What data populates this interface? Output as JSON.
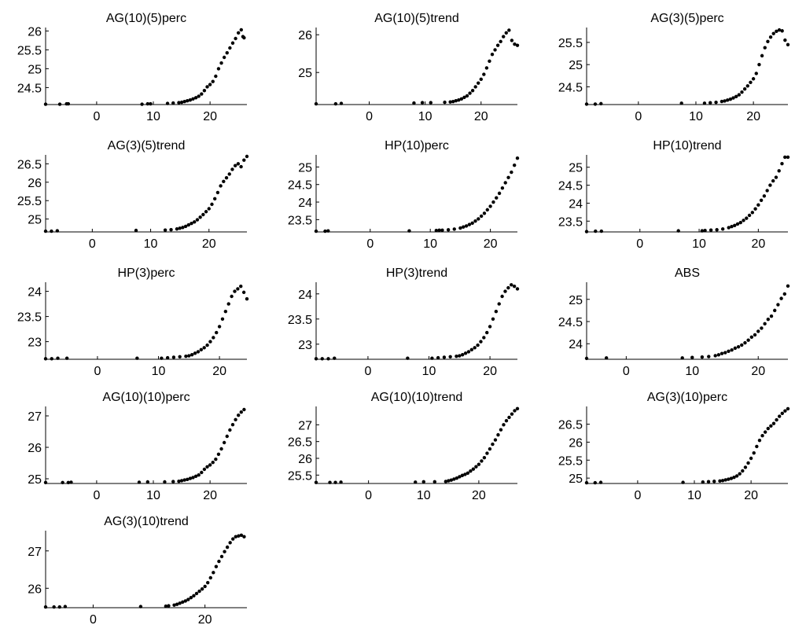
{
  "chart_data": [
    {
      "type": "scatter",
      "title": "AG(10)(5)perc",
      "xlim": [
        -9,
        26.5
      ],
      "ylim": [
        24.05,
        26.05
      ],
      "xticks": [
        0,
        10,
        20
      ],
      "yticks": [
        24.5,
        25,
        25.5,
        26
      ],
      "x": [
        -9,
        -6.5,
        -5.3,
        -5,
        8,
        9,
        9.5,
        12.5,
        13.5,
        14.5,
        15,
        15.5,
        16,
        16.5,
        17,
        17.5,
        18,
        18.5,
        19,
        19.5,
        20,
        20.5,
        21,
        21.5,
        22,
        22.5,
        23,
        23.5,
        24,
        24.5,
        25,
        25.5,
        25.8,
        26
      ],
      "y": [
        24.06,
        24.06,
        24.07,
        24.07,
        24.06,
        24.07,
        24.07,
        24.08,
        24.09,
        24.1,
        24.11,
        24.13,
        24.15,
        24.17,
        24.2,
        24.23,
        24.27,
        24.33,
        24.42,
        24.52,
        24.58,
        24.66,
        24.8,
        25.0,
        25.15,
        25.3,
        25.42,
        25.55,
        25.68,
        25.8,
        25.95,
        26.03,
        25.85,
        25.82
      ]
    },
    {
      "type": "scatter",
      "title": "AG(10)(5)trend",
      "xlim": [
        -9.5,
        26.5
      ],
      "ylim": [
        24.15,
        26.15
      ],
      "xticks": [
        0,
        10,
        20
      ],
      "yticks": [
        25,
        26
      ],
      "x": [
        -9.5,
        -6,
        -5,
        8,
        9.5,
        11,
        13.5,
        14.5,
        15,
        15.5,
        16,
        16.5,
        17,
        17.5,
        18,
        18.5,
        19,
        19.5,
        20,
        20.5,
        21,
        21.5,
        22,
        22.5,
        23,
        23.5,
        24,
        24.5,
        25,
        25.5,
        26,
        26.5
      ],
      "y": [
        24.17,
        24.17,
        24.18,
        24.19,
        24.2,
        24.2,
        24.21,
        24.22,
        24.23,
        24.25,
        24.27,
        24.3,
        24.34,
        24.38,
        24.45,
        24.52,
        24.62,
        24.72,
        24.82,
        24.95,
        25.12,
        25.3,
        25.48,
        25.6,
        25.72,
        25.82,
        25.95,
        26.05,
        26.12,
        25.85,
        25.75,
        25.72
      ]
    },
    {
      "type": "scatter",
      "title": "AG(3)(5)perc",
      "xlim": [
        -9,
        26
      ],
      "ylim": [
        24.1,
        25.8
      ],
      "xticks": [
        0,
        10,
        20
      ],
      "yticks": [
        24.5,
        25,
        25.5
      ],
      "x": [
        -9,
        -7.5,
        -6.5,
        7.5,
        11.5,
        12.5,
        13.5,
        14.5,
        15,
        15.5,
        16,
        16.5,
        17,
        17.5,
        18,
        18.5,
        19,
        19.5,
        20,
        20.5,
        21,
        21.5,
        22,
        22.5,
        23,
        23.5,
        24,
        24.5,
        25,
        25.5,
        26
      ],
      "y": [
        24.11,
        24.11,
        24.12,
        24.13,
        24.13,
        24.14,
        24.15,
        24.17,
        24.18,
        24.2,
        24.22,
        24.25,
        24.28,
        24.32,
        24.38,
        24.45,
        24.52,
        24.6,
        24.68,
        24.8,
        25.0,
        25.2,
        25.38,
        25.52,
        25.62,
        25.7,
        25.75,
        25.78,
        25.76,
        25.55,
        25.45
      ]
    },
    {
      "type": "scatter",
      "title": "AG(3)(5)trend",
      "xlim": [
        -8,
        26.5
      ],
      "ylim": [
        24.65,
        26.7
      ],
      "xticks": [
        0,
        10,
        20
      ],
      "yticks": [
        25,
        25.5,
        26,
        26.5
      ],
      "x": [
        -8,
        -7,
        -6,
        7.5,
        12.5,
        13.5,
        14.5,
        15,
        15.5,
        16,
        16.5,
        17,
        17.5,
        18,
        18.5,
        19,
        19.5,
        20,
        20.5,
        21,
        21.5,
        22,
        22.5,
        23,
        23.5,
        24,
        24.5,
        25,
        25.5,
        26,
        26.5
      ],
      "y": [
        24.67,
        24.67,
        24.68,
        24.69,
        24.7,
        24.71,
        24.73,
        24.75,
        24.77,
        24.8,
        24.84,
        24.88,
        24.92,
        24.98,
        25.05,
        25.12,
        25.2,
        25.28,
        25.4,
        25.55,
        25.72,
        25.9,
        26.02,
        26.12,
        26.22,
        26.35,
        26.45,
        26.5,
        26.42,
        26.6,
        26.7
      ]
    },
    {
      "type": "scatter",
      "title": "HP(10)perc",
      "xlim": [
        -9,
        24.5
      ],
      "ylim": [
        23.15,
        25.3
      ],
      "xticks": [
        0,
        10,
        20
      ],
      "yticks": [
        23.5,
        24,
        24.5,
        25
      ],
      "x": [
        -9,
        -7.5,
        -7,
        6.5,
        11,
        11.5,
        12,
        13,
        14,
        15,
        15.5,
        16,
        16.5,
        17,
        17.5,
        18,
        18.5,
        19,
        19.5,
        20,
        20.5,
        21,
        21.5,
        22,
        22.5,
        23,
        23.5,
        24,
        24.5
      ],
      "y": [
        23.17,
        23.17,
        23.18,
        23.18,
        23.19,
        23.2,
        23.2,
        23.21,
        23.23,
        23.26,
        23.29,
        23.32,
        23.36,
        23.4,
        23.46,
        23.52,
        23.6,
        23.68,
        23.78,
        23.88,
        24.0,
        24.12,
        24.25,
        24.4,
        24.55,
        24.7,
        24.85,
        25.05,
        25.25
      ]
    },
    {
      "type": "scatter",
      "title": "HP(10)trend",
      "xlim": [
        -9,
        25
      ],
      "ylim": [
        23.2,
        25.3
      ],
      "xticks": [
        0,
        10,
        20
      ],
      "yticks": [
        23.5,
        24,
        24.5,
        25
      ],
      "x": [
        -9,
        -7.5,
        -6.5,
        6.5,
        10.5,
        11,
        12,
        13,
        14,
        15,
        15.5,
        16,
        16.5,
        17,
        17.5,
        18,
        18.5,
        19,
        19.5,
        20,
        20.5,
        21,
        21.5,
        22,
        22.5,
        23,
        23.5,
        24,
        24.5,
        25
      ],
      "y": [
        23.21,
        23.22,
        23.22,
        23.23,
        23.23,
        23.24,
        23.25,
        23.26,
        23.28,
        23.32,
        23.35,
        23.38,
        23.42,
        23.46,
        23.52,
        23.58,
        23.66,
        23.74,
        23.84,
        23.95,
        24.08,
        24.2,
        24.35,
        24.5,
        24.62,
        24.72,
        24.9,
        25.1,
        25.28,
        25.28
      ]
    },
    {
      "type": "scatter",
      "title": "HP(3)perc",
      "xlim": [
        -8.5,
        24.5
      ],
      "ylim": [
        22.65,
        24.15
      ],
      "xticks": [
        0,
        10,
        20
      ],
      "yticks": [
        23,
        23.5,
        24
      ],
      "x": [
        -8.5,
        -7.5,
        -6.5,
        -5,
        6.5,
        10.5,
        11.5,
        12.5,
        13.5,
        14.5,
        15,
        15.5,
        16,
        16.5,
        17,
        17.5,
        18,
        18.5,
        19,
        19.5,
        20,
        20.5,
        21,
        21.5,
        22,
        22.5,
        23,
        23.5,
        24,
        24.5
      ],
      "y": [
        22.66,
        22.66,
        22.67,
        22.67,
        22.67,
        22.67,
        22.68,
        22.69,
        22.7,
        22.71,
        22.72,
        22.74,
        22.77,
        22.8,
        22.84,
        22.88,
        22.93,
        23.0,
        23.08,
        23.18,
        23.3,
        23.45,
        23.6,
        23.75,
        23.9,
        24.0,
        24.05,
        24.1,
        23.98,
        23.85
      ]
    },
    {
      "type": "scatter",
      "title": "HP(3)trend",
      "xlim": [
        -8.5,
        24.5
      ],
      "ylim": [
        22.7,
        24.2
      ],
      "xticks": [
        0,
        10,
        20
      ],
      "yticks": [
        23,
        23.5,
        24
      ],
      "x": [
        -8.5,
        -7.5,
        -6.5,
        -5.5,
        6.5,
        10.5,
        11.5,
        12.5,
        13.5,
        14.5,
        15,
        15.5,
        16,
        16.5,
        17,
        17.5,
        18,
        18.5,
        19,
        19.5,
        20,
        20.5,
        21,
        21.5,
        22,
        22.5,
        23,
        23.5,
        24,
        24.5
      ],
      "y": [
        22.71,
        22.71,
        22.71,
        22.72,
        22.72,
        22.72,
        22.73,
        22.74,
        22.75,
        22.76,
        22.77,
        22.79,
        22.82,
        22.85,
        22.89,
        22.93,
        22.98,
        23.05,
        23.13,
        23.23,
        23.35,
        23.5,
        23.65,
        23.8,
        23.95,
        24.05,
        24.12,
        24.18,
        24.15,
        24.1
      ]
    },
    {
      "type": "scatter",
      "title": "ABS",
      "xlim": [
        -6,
        24.5
      ],
      "ylim": [
        23.65,
        25.35
      ],
      "xticks": [
        0,
        10,
        20
      ],
      "yticks": [
        24,
        24.5,
        25
      ],
      "x": [
        -6,
        -3,
        8.5,
        10,
        11.5,
        12.5,
        13.5,
        14,
        14.5,
        15,
        15.5,
        16,
        16.5,
        17,
        17.5,
        18,
        18.5,
        19,
        19.5,
        20,
        20.5,
        21,
        21.5,
        22,
        22.5,
        23,
        23.5,
        24,
        24.5
      ],
      "y": [
        23.67,
        23.68,
        23.68,
        23.69,
        23.7,
        23.71,
        23.73,
        23.75,
        23.78,
        23.8,
        23.83,
        23.86,
        23.9,
        23.93,
        23.97,
        24.02,
        24.08,
        24.15,
        24.2,
        24.28,
        24.35,
        24.45,
        24.55,
        24.62,
        24.75,
        24.88,
        25.02,
        25.12,
        25.3
      ]
    },
    {
      "type": "scatter",
      "title": "AG(10)(10)perc",
      "xlim": [
        -9,
        26.5
      ],
      "ylim": [
        24.85,
        27.25
      ],
      "xticks": [
        0,
        10,
        20
      ],
      "yticks": [
        25,
        26,
        27
      ],
      "x": [
        -9,
        -6,
        -5,
        -4.5,
        7.5,
        9,
        12,
        13.5,
        14.5,
        15,
        15.5,
        16,
        16.5,
        17,
        17.5,
        18,
        18.5,
        19,
        19.5,
        20,
        20.5,
        21,
        21.5,
        22,
        22.5,
        23,
        23.5,
        24,
        24.5,
        25,
        25.5,
        26
      ],
      "y": [
        24.88,
        24.88,
        24.88,
        24.89,
        24.89,
        24.9,
        24.9,
        24.91,
        24.92,
        24.94,
        24.96,
        24.98,
        25.01,
        25.04,
        25.08,
        25.12,
        25.2,
        25.3,
        25.38,
        25.44,
        25.52,
        25.62,
        25.78,
        25.95,
        26.15,
        26.35,
        26.55,
        26.72,
        26.88,
        27.02,
        27.12,
        27.2
      ]
    },
    {
      "type": "scatter",
      "title": "AG(10)(10)trend",
      "xlim": [
        -9.5,
        27
      ],
      "ylim": [
        25.25,
        27.5
      ],
      "xticks": [
        0,
        10,
        20
      ],
      "yticks": [
        25.5,
        26,
        26.5,
        27
      ],
      "x": [
        -9.5,
        -7,
        -6,
        -5,
        8.5,
        10,
        12,
        14,
        14.5,
        15,
        15.5,
        16,
        16.5,
        17,
        17.5,
        18,
        18.5,
        19,
        19.5,
        20,
        20.5,
        21,
        21.5,
        22,
        22.5,
        23,
        23.5,
        24,
        24.5,
        25,
        25.5,
        26,
        26.5,
        27
      ],
      "y": [
        25.28,
        25.28,
        25.28,
        25.29,
        25.29,
        25.3,
        25.3,
        25.31,
        25.33,
        25.35,
        25.38,
        25.41,
        25.45,
        25.49,
        25.52,
        25.56,
        25.62,
        25.68,
        25.75,
        25.82,
        25.92,
        26.02,
        26.15,
        26.28,
        26.42,
        26.55,
        26.7,
        26.85,
        27.0,
        27.12,
        27.22,
        27.32,
        27.42,
        27.48
      ]
    },
    {
      "type": "scatter",
      "title": "AG(3)(10)perc",
      "xlim": [
        -9,
        26.5
      ],
      "ylim": [
        24.85,
        26.95
      ],
      "xticks": [
        0,
        10,
        20
      ],
      "yticks": [
        25,
        25.5,
        26,
        26.5
      ],
      "x": [
        -9,
        -7.5,
        -6.5,
        8,
        11.5,
        12.5,
        13.5,
        14.5,
        15,
        15.5,
        16,
        16.5,
        17,
        17.5,
        18,
        18.5,
        19,
        19.5,
        20,
        20.5,
        21,
        21.5,
        22,
        22.5,
        23,
        23.5,
        24,
        24.5,
        25,
        25.5,
        26,
        26.5
      ],
      "y": [
        24.87,
        24.87,
        24.88,
        24.88,
        24.89,
        24.9,
        24.91,
        24.92,
        24.93,
        24.95,
        24.97,
        24.99,
        25.02,
        25.06,
        25.12,
        25.2,
        25.3,
        25.42,
        25.55,
        25.7,
        25.88,
        26.05,
        26.18,
        26.28,
        26.38,
        26.45,
        26.52,
        26.62,
        26.72,
        26.8,
        26.87,
        26.93
      ]
    },
    {
      "type": "scatter",
      "title": "AG(3)(10)trend",
      "xlim": [
        -8.5,
        27.5
      ],
      "ylim": [
        25.48,
        27.5
      ],
      "xticks": [
        0,
        20
      ],
      "yticks": [
        26,
        27
      ],
      "x": [
        -8.5,
        -7,
        -6,
        -5,
        8.5,
        13,
        13.5,
        14.5,
        15,
        15.5,
        16,
        16.5,
        17,
        17.5,
        18,
        18.5,
        19,
        19.5,
        20,
        20.5,
        21,
        21.5,
        22,
        22.5,
        23,
        23.5,
        24,
        24.5,
        25,
        25.5,
        26,
        26.5,
        27
      ],
      "y": [
        25.5,
        25.5,
        25.5,
        25.51,
        25.51,
        25.52,
        25.53,
        25.55,
        25.57,
        25.6,
        25.63,
        25.66,
        25.7,
        25.75,
        25.8,
        25.86,
        25.92,
        25.98,
        26.05,
        26.15,
        26.28,
        26.42,
        26.58,
        26.72,
        26.85,
        26.98,
        27.1,
        27.22,
        27.32,
        27.38,
        27.4,
        27.42,
        27.38
      ]
    }
  ]
}
